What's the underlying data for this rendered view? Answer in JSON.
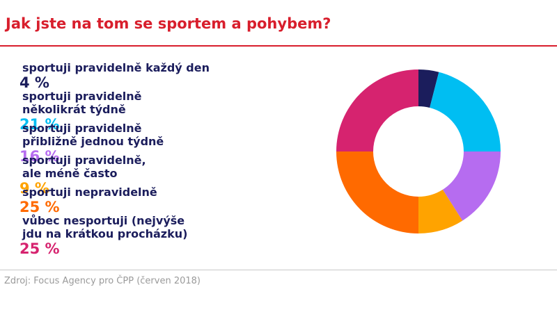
{
  "chart_data": {
    "type": "donut",
    "title": "Jak jste na tom se sportem a pohybem?",
    "categories": [
      "sportuji pravidelně každý den",
      "sportuji pravidelně\nněkolikrát týdně",
      "sportuji pravidelně\npřibližně jednou týdně",
      "sportuji pravidelně,\nale méně často",
      "sportuji nepravidelně",
      "vůbec nesportuji (nejvýše\njdu na krátkou procházku)"
    ],
    "values": [
      4,
      21,
      16,
      9,
      25,
      25
    ],
    "value_labels": [
      "4 %",
      "21 %",
      "16 %",
      "9 %",
      "25 %",
      "25 %"
    ],
    "colors": [
      "#1b1d5c",
      "#00bef2",
      "#b66cf0",
      "#ffa300",
      "#ff6a00",
      "#d6236f"
    ],
    "source": "Zdroj: Focus Agency pro ČPP (červen 2018)"
  }
}
